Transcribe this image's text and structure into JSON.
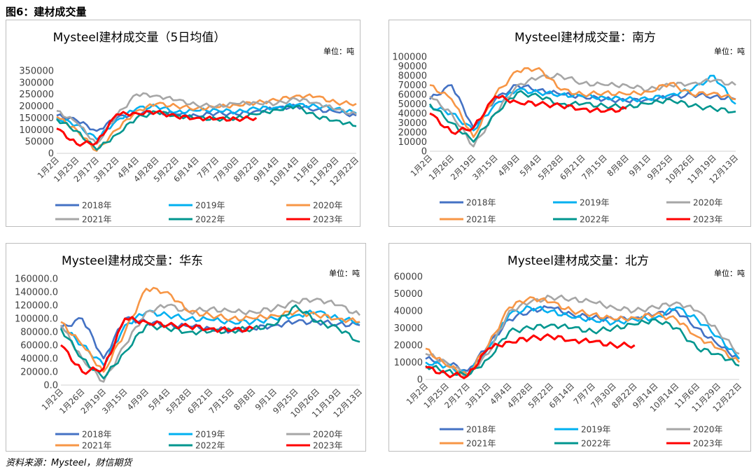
{
  "figure_title": "图6：建材成交量",
  "source": "资料来源：Mysteel，财信期货",
  "chart_data": [
    {
      "type": "line",
      "title": "Mysteel建材成交量（5日均值）",
      "unit": "单位：吨",
      "yticks": [
        "0",
        "50000",
        "100000",
        "150000",
        "200000",
        "250000",
        "300000",
        "350000"
      ],
      "ylim": [
        0,
        350000
      ],
      "categories": [
        "1月2日",
        "1月25日",
        "2月17日",
        "3月12日",
        "4月4日",
        "4月28日",
        "5月22日",
        "6月14日",
        "7月7日",
        "7月30日",
        "8月22日",
        "9月14日",
        "10月14日",
        "11月6日",
        "11月29日",
        "12月22日"
      ],
      "legend": [
        "2018年",
        "2019年",
        "2020年",
        "2021年",
        "2022年",
        "2023年"
      ],
      "series": [
        {
          "name": "2018年",
          "color": "#4472C4",
          "values": [
            160000,
            140000,
            95000,
            150000,
            170000,
            175000,
            165000,
            160000,
            170000,
            165000,
            180000,
            190000,
            200000,
            185000,
            175000,
            160000
          ]
        },
        {
          "name": "2019年",
          "color": "#00B0F0",
          "values": [
            150000,
            120000,
            60000,
            140000,
            190000,
            200000,
            175000,
            180000,
            185000,
            175000,
            190000,
            195000,
            205000,
            200000,
            190000,
            170000
          ]
        },
        {
          "name": "2020年",
          "color": "#F79646",
          "values": [
            155000,
            100000,
            10000,
            100000,
            180000,
            210000,
            200000,
            190000,
            195000,
            205000,
            215000,
            225000,
            245000,
            240000,
            215000,
            210000
          ]
        },
        {
          "name": "2021年",
          "color": "#A6A6A6",
          "values": [
            180000,
            130000,
            40000,
            160000,
            250000,
            245000,
            225000,
            205000,
            200000,
            210000,
            215000,
            210000,
            230000,
            215000,
            185000,
            165000
          ]
        },
        {
          "name": "2022年",
          "color": "#00968F",
          "values": [
            145000,
            95000,
            15000,
            80000,
            150000,
            175000,
            160000,
            150000,
            145000,
            150000,
            165000,
            185000,
            200000,
            155000,
            140000,
            115000
          ]
        },
        {
          "name": "2023年",
          "color": "#FF0000",
          "values": [
            105000,
            40000,
            45000,
            165000,
            170000,
            175000,
            155000,
            150000,
            145000,
            145000,
            150000,
            null,
            null,
            null,
            null,
            null
          ]
        }
      ]
    },
    {
      "type": "line",
      "title": "Mysteel建材成交量：南方",
      "unit": "单位：吨",
      "yticks": [
        "0",
        "10000",
        "20000",
        "30000",
        "40000",
        "50000",
        "60000",
        "70000",
        "80000",
        "90000",
        "100000"
      ],
      "ylim": [
        0,
        100000
      ],
      "categories": [
        "1月2日",
        "1月26日",
        "2月19日",
        "3月15日",
        "4月9日",
        "5月4日",
        "5月28日",
        "6月21日",
        "7月15日",
        "8月8日",
        "9月1日",
        "9月25日",
        "10月26日",
        "11月19日",
        "12月13日"
      ],
      "legend": [
        "2018年",
        "2019年",
        "2020年",
        "2021年",
        "2022年",
        "2023年"
      ],
      "series": [
        {
          "name": "2018年",
          "color": "#4472C4",
          "values": [
            55000,
            70000,
            25000,
            55000,
            70000,
            65000,
            60000,
            58000,
            55000,
            53000,
            55000,
            57000,
            60000,
            58000,
            55000
          ]
        },
        {
          "name": "2019年",
          "color": "#00B0F0",
          "values": [
            48000,
            40000,
            22000,
            50000,
            65000,
            62000,
            60000,
            58000,
            57000,
            55000,
            55000,
            60000,
            65000,
            80000,
            50000
          ]
        },
        {
          "name": "2020年",
          "color": "#A6A6A6",
          "values": [
            58000,
            40000,
            5000,
            40000,
            70000,
            78000,
            80000,
            72000,
            70000,
            70000,
            65000,
            70000,
            72000,
            75000,
            70000
          ]
        },
        {
          "name": "2021年",
          "color": "#F79646",
          "values": [
            70000,
            55000,
            15000,
            60000,
            85000,
            88000,
            65000,
            60000,
            62000,
            60000,
            63000,
            72000,
            60000,
            62000,
            55000
          ]
        },
        {
          "name": "2022年",
          "color": "#00968F",
          "values": [
            50000,
            30000,
            10000,
            40000,
            62000,
            58000,
            50000,
            50000,
            48000,
            47000,
            50000,
            55000,
            48000,
            45000,
            42000
          ]
        },
        {
          "name": "2023年",
          "color": "#FF0000",
          "values": [
            40000,
            20000,
            25000,
            58000,
            52000,
            50000,
            48000,
            45000,
            42000,
            45000,
            null,
            null,
            null,
            null,
            null
          ]
        }
      ]
    },
    {
      "type": "line",
      "title": "Mysteel建材成交量：华东",
      "unit": "单位：吨",
      "yticks": [
        "0.0",
        "20000.0",
        "40000.0",
        "60000.0",
        "80000.0",
        "100000.0",
        "120000.0",
        "140000.0",
        "160000.0"
      ],
      "ylim": [
        0,
        160000
      ],
      "categories": [
        "1月2日",
        "1月26日",
        "2月19日",
        "3月15日",
        "4月9日",
        "5月4日",
        "5月28日",
        "6月21日",
        "7月15日",
        "8月8日",
        "9月1日",
        "9月25日",
        "10月26日",
        "11月19日",
        "12月13日"
      ],
      "legend": [
        "2018年",
        "2019年",
        "2020年",
        "2021年",
        "2022年",
        "2023年"
      ],
      "series": [
        {
          "name": "2018年",
          "color": "#4472C4",
          "values": [
            85000,
            100000,
            40000,
            100000,
            95000,
            90000,
            88000,
            85000,
            82000,
            85000,
            90000,
            95000,
            95000,
            92000,
            90000
          ]
        },
        {
          "name": "2019年",
          "color": "#00B0F0",
          "values": [
            90000,
            60000,
            30000,
            90000,
            110000,
            105000,
            100000,
            98000,
            95000,
            95000,
            100000,
            105000,
            110000,
            100000,
            95000
          ]
        },
        {
          "name": "2020年",
          "color": "#A6A6A6",
          "values": [
            90000,
            40000,
            5000,
            60000,
            110000,
            120000,
            110000,
            115000,
            110000,
            110000,
            115000,
            125000,
            130000,
            120000,
            105000
          ]
        },
        {
          "name": "2021年",
          "color": "#F79646",
          "values": [
            95000,
            60000,
            20000,
            80000,
            145000,
            140000,
            110000,
            105000,
            100000,
            100000,
            105000,
            110000,
            105000,
            100000,
            95000
          ]
        },
        {
          "name": "2022年",
          "color": "#00968F",
          "values": [
            85000,
            40000,
            10000,
            50000,
            90000,
            85000,
            80000,
            80000,
            82000,
            85000,
            90000,
            120000,
            95000,
            85000,
            65000
          ]
        },
        {
          "name": "2023年",
          "color": "#FF0000",
          "values": [
            60000,
            20000,
            25000,
            100000,
            95000,
            90000,
            88000,
            85000,
            82000,
            85000,
            null,
            null,
            null,
            null,
            null
          ]
        }
      ]
    },
    {
      "type": "line",
      "title": "Mysteel建材成交量：北方",
      "unit": "单位：吨",
      "yticks": [
        "0",
        "10000",
        "20000",
        "30000",
        "40000",
        "50000",
        "60000"
      ],
      "ylim": [
        0,
        60000
      ],
      "categories": [
        "1月2日",
        "1月25日",
        "2月17日",
        "3月12日",
        "4月4日",
        "4月28日",
        "5月22日",
        "6月14日",
        "7月7日",
        "7月30日",
        "8月22日",
        "9月14日",
        "10月14日",
        "11月6日",
        "11月29日",
        "12月22日"
      ],
      "legend": [
        "2018年",
        "2019年",
        "2020年",
        "2021年",
        "2022年",
        "2023年"
      ],
      "series": [
        {
          "name": "2018年",
          "color": "#4472C4",
          "values": [
            12000,
            10000,
            5000,
            20000,
            35000,
            40000,
            42000,
            38000,
            36000,
            35000,
            36000,
            38000,
            40000,
            30000,
            20000,
            12000
          ]
        },
        {
          "name": "2019年",
          "color": "#00B0F0",
          "values": [
            10000,
            8000,
            3000,
            18000,
            38000,
            42000,
            40000,
            36000,
            35000,
            33000,
            35000,
            36000,
            42000,
            35000,
            25000,
            12000
          ]
        },
        {
          "name": "2020年",
          "color": "#A6A6A6",
          "values": [
            15000,
            10000,
            2000,
            15000,
            40000,
            45000,
            48000,
            47000,
            45000,
            42000,
            40000,
            42000,
            45000,
            40000,
            28000,
            15000
          ]
        },
        {
          "name": "2021年",
          "color": "#F79646",
          "values": [
            18000,
            8000,
            3000,
            20000,
            42000,
            48000,
            45000,
            40000,
            38000,
            35000,
            36000,
            38000,
            35000,
            25000,
            18000,
            10000
          ]
        },
        {
          "name": "2022年",
          "color": "#00968F",
          "values": [
            8000,
            5000,
            2000,
            12000,
            28000,
            30000,
            32000,
            30000,
            28000,
            30000,
            32000,
            35000,
            30000,
            18000,
            15000,
            8000
          ]
        },
        {
          "name": "2023年",
          "color": "#FF0000",
          "values": [
            7000,
            3000,
            2000,
            18000,
            22000,
            24000,
            25000,
            23000,
            22000,
            20000,
            20000,
            null,
            null,
            null,
            null,
            null
          ]
        }
      ]
    }
  ]
}
